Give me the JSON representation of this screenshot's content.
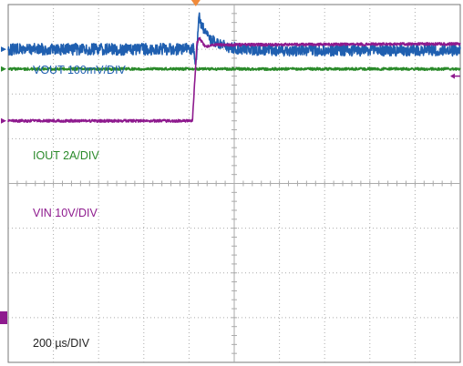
{
  "chart_data": {
    "type": "line",
    "title": "",
    "xlabel": "",
    "ylabel": "",
    "grid": true,
    "divisions": {
      "x": 10,
      "y": 8
    },
    "time_scale_label": "200 µs/DIV",
    "x_range_us": [
      0,
      2000
    ],
    "trigger_time_us": 830,
    "colors": {
      "grid": "#aaaaaa",
      "frame": "#777777",
      "trigger_marker": "#f08a3a",
      "time_label": "#222222"
    },
    "channels": [
      {
        "name": "VOUT",
        "label": "VOUT 100mV/DIV",
        "color": "#1f5fb0",
        "scale": "100mV/DIV",
        "baseline_div": 1.0,
        "noise_div": 0.13,
        "points": [
          {
            "t": 0,
            "v": 0.0
          },
          {
            "t": 820,
            "v": 0.0
          },
          {
            "t": 830,
            "v": -0.35
          },
          {
            "t": 840,
            "v": 0.45
          },
          {
            "t": 845,
            "v": 0.7
          },
          {
            "t": 870,
            "v": 0.35
          },
          {
            "t": 920,
            "v": 0.12
          },
          {
            "t": 980,
            "v": 0.03
          },
          {
            "t": 1100,
            "v": -0.02
          },
          {
            "t": 2000,
            "v": -0.02
          }
        ]
      },
      {
        "name": "IOUT",
        "label": "IOUT 2A/DIV",
        "color": "#2a8a2a",
        "scale": "2A/DIV",
        "baseline_div": 1.44,
        "noise_div": 0.03,
        "points": [
          {
            "t": 0,
            "v": 0.0
          },
          {
            "t": 2000,
            "v": 0.0
          }
        ]
      },
      {
        "name": "VIN",
        "label": "VIN 10V/DIV",
        "color": "#8e1a8e",
        "scale": "10V/DIV",
        "baseline_div": 2.6,
        "noise_div": 0.03,
        "points": [
          {
            "t": 0,
            "v": 0.0
          },
          {
            "t": 815,
            "v": 0.0
          },
          {
            "t": 835,
            "v": 1.73
          },
          {
            "t": 845,
            "v": 1.86
          },
          {
            "t": 870,
            "v": 1.66
          },
          {
            "t": 920,
            "v": 1.7
          },
          {
            "t": 2000,
            "v": 1.72
          }
        ]
      }
    ]
  }
}
